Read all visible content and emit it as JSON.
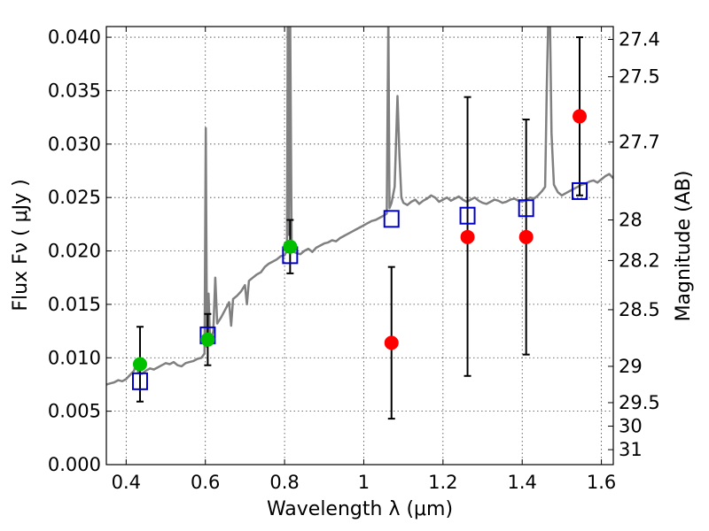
{
  "chart_data": {
    "type": "scatter",
    "xlabel": "Wavelength  λ (μm)",
    "ylabel": "Flux  Fν  ( μJy )",
    "ylabel_right": "Magnitude (AB)",
    "xlim": [
      0.35,
      1.63
    ],
    "ylim": [
      0.0,
      0.041
    ],
    "x_ticks": [
      0.4,
      0.6,
      0.8,
      1.0,
      1.2,
      1.4,
      1.6
    ],
    "x_tick_labels": [
      "0.4",
      "0.6",
      "0.8",
      "1",
      "1.2",
      "1.4",
      "1.6"
    ],
    "y_ticks": [
      0.0,
      0.005,
      0.01,
      0.015,
      0.02,
      0.025,
      0.03,
      0.035,
      0.04
    ],
    "y_tick_labels": [
      "0.000",
      "0.005",
      "0.010",
      "0.015",
      "0.020",
      "0.025",
      "0.030",
      "0.035",
      "0.040"
    ],
    "right_ticks": [
      {
        "label": "27.4",
        "flux": 0.0398
      },
      {
        "label": "27.5",
        "flux": 0.0363
      },
      {
        "label": "27.7",
        "flux": 0.0302
      },
      {
        "label": "28",
        "flux": 0.0229
      },
      {
        "label": "28.2",
        "flux": 0.0191
      },
      {
        "label": "28.5",
        "flux": 0.0145
      },
      {
        "label": "29",
        "flux": 0.0092
      },
      {
        "label": "29.5",
        "flux": 0.0058
      },
      {
        "label": "30",
        "flux": 0.0036
      },
      {
        "label": "31",
        "flux": 0.0014
      }
    ],
    "grid": true,
    "series": [
      {
        "marker": "open-square",
        "color": "#0000cc",
        "points": [
          {
            "x": 0.435,
            "y": 0.0078
          },
          {
            "x": 0.606,
            "y": 0.0121
          },
          {
            "x": 0.814,
            "y": 0.0196
          },
          {
            "x": 1.07,
            "y": 0.023
          },
          {
            "x": 1.262,
            "y": 0.0233
          },
          {
            "x": 1.41,
            "y": 0.024
          },
          {
            "x": 1.545,
            "y": 0.0256
          }
        ]
      },
      {
        "marker": "filled-circle",
        "color": "#00c000",
        "points": [
          {
            "x": 0.435,
            "y": 0.0094,
            "err_low": 0.0035,
            "err_high": 0.0035
          },
          {
            "x": 0.606,
            "y": 0.0117,
            "err_low": 0.0024,
            "err_high": 0.0024
          },
          {
            "x": 0.814,
            "y": 0.0204,
            "err_low": 0.0025,
            "err_high": 0.0025
          }
        ]
      },
      {
        "marker": "filled-circle",
        "color": "#ff0000",
        "points": [
          {
            "x": 1.07,
            "y": 0.0114,
            "err_low": 0.0071,
            "err_high": 0.0071
          },
          {
            "x": 1.262,
            "y": 0.0213,
            "err_low": 0.013,
            "err_high": 0.0131
          },
          {
            "x": 1.41,
            "y": 0.0213,
            "err_low": 0.011,
            "err_high": 0.011
          },
          {
            "x": 1.545,
            "y": 0.0326,
            "err_low": 0.0074,
            "err_high": 0.0074
          }
        ]
      }
    ],
    "spectrum": {
      "color": "#808080",
      "points": [
        [
          0.35,
          0.0075
        ],
        [
          0.36,
          0.0076
        ],
        [
          0.37,
          0.0077
        ],
        [
          0.38,
          0.0079
        ],
        [
          0.39,
          0.0078
        ],
        [
          0.4,
          0.008
        ],
        [
          0.41,
          0.0084
        ],
        [
          0.42,
          0.0088
        ],
        [
          0.425,
          0.0095
        ],
        [
          0.43,
          0.0087
        ],
        [
          0.44,
          0.0085
        ],
        [
          0.45,
          0.0088
        ],
        [
          0.46,
          0.009
        ],
        [
          0.47,
          0.0089
        ],
        [
          0.48,
          0.0091
        ],
        [
          0.49,
          0.0093
        ],
        [
          0.5,
          0.0095
        ],
        [
          0.51,
          0.0094
        ],
        [
          0.52,
          0.0096
        ],
        [
          0.53,
          0.0093
        ],
        [
          0.54,
          0.0092
        ],
        [
          0.55,
          0.0095
        ],
        [
          0.56,
          0.0096
        ],
        [
          0.57,
          0.0097
        ],
        [
          0.58,
          0.0099
        ],
        [
          0.59,
          0.01
        ],
        [
          0.598,
          0.0104
        ],
        [
          0.601,
          0.0315
        ],
        [
          0.604,
          0.011
        ],
        [
          0.608,
          0.016
        ],
        [
          0.612,
          0.0115
        ],
        [
          0.62,
          0.0125
        ],
        [
          0.625,
          0.0175
        ],
        [
          0.63,
          0.0132
        ],
        [
          0.64,
          0.0138
        ],
        [
          0.65,
          0.0145
        ],
        [
          0.66,
          0.0152
        ],
        [
          0.665,
          0.013
        ],
        [
          0.67,
          0.0155
        ],
        [
          0.68,
          0.0158
        ],
        [
          0.69,
          0.0162
        ],
        [
          0.7,
          0.0168
        ],
        [
          0.705,
          0.015
        ],
        [
          0.71,
          0.0172
        ],
        [
          0.72,
          0.0175
        ],
        [
          0.73,
          0.0178
        ],
        [
          0.74,
          0.018
        ],
        [
          0.75,
          0.0185
        ],
        [
          0.76,
          0.0188
        ],
        [
          0.77,
          0.019
        ],
        [
          0.78,
          0.0192
        ],
        [
          0.79,
          0.0195
        ],
        [
          0.8,
          0.0196
        ],
        [
          0.806,
          0.02
        ],
        [
          0.808,
          0.042
        ],
        [
          0.811,
          0.0215
        ],
        [
          0.814,
          0.042
        ],
        [
          0.818,
          0.02
        ],
        [
          0.83,
          0.0198
        ],
        [
          0.84,
          0.0197
        ],
        [
          0.85,
          0.02
        ],
        [
          0.86,
          0.0202
        ],
        [
          0.87,
          0.0199
        ],
        [
          0.88,
          0.0203
        ],
        [
          0.89,
          0.0205
        ],
        [
          0.9,
          0.0207
        ],
        [
          0.91,
          0.0208
        ],
        [
          0.92,
          0.021
        ],
        [
          0.93,
          0.0209
        ],
        [
          0.94,
          0.0212
        ],
        [
          0.95,
          0.0214
        ],
        [
          0.96,
          0.0216
        ],
        [
          0.97,
          0.0218
        ],
        [
          0.98,
          0.022
        ],
        [
          0.99,
          0.0222
        ],
        [
          1.0,
          0.0224
        ],
        [
          1.01,
          0.0226
        ],
        [
          1.02,
          0.0228
        ],
        [
          1.03,
          0.0229
        ],
        [
          1.04,
          0.0231
        ],
        [
          1.05,
          0.0233
        ],
        [
          1.058,
          0.0235
        ],
        [
          1.062,
          0.042
        ],
        [
          1.065,
          0.024
        ],
        [
          1.07,
          0.0245
        ],
        [
          1.078,
          0.026
        ],
        [
          1.085,
          0.0345
        ],
        [
          1.09,
          0.029
        ],
        [
          1.095,
          0.025
        ],
        [
          1.1,
          0.0245
        ],
        [
          1.11,
          0.0243
        ],
        [
          1.12,
          0.0246
        ],
        [
          1.13,
          0.0248
        ],
        [
          1.14,
          0.0244
        ],
        [
          1.15,
          0.0247
        ],
        [
          1.16,
          0.0249
        ],
        [
          1.17,
          0.0252
        ],
        [
          1.18,
          0.025
        ],
        [
          1.19,
          0.0246
        ],
        [
          1.2,
          0.0248
        ],
        [
          1.21,
          0.025
        ],
        [
          1.22,
          0.0247
        ],
        [
          1.23,
          0.0249
        ],
        [
          1.24,
          0.0251
        ],
        [
          1.25,
          0.0248
        ],
        [
          1.26,
          0.0246
        ],
        [
          1.27,
          0.0248
        ],
        [
          1.28,
          0.025
        ],
        [
          1.29,
          0.0247
        ],
        [
          1.3,
          0.0245
        ],
        [
          1.31,
          0.0244
        ],
        [
          1.32,
          0.0246
        ],
        [
          1.33,
          0.0248
        ],
        [
          1.34,
          0.0247
        ],
        [
          1.35,
          0.0245
        ],
        [
          1.36,
          0.0246
        ],
        [
          1.37,
          0.0248
        ],
        [
          1.38,
          0.0249
        ],
        [
          1.39,
          0.0247
        ],
        [
          1.4,
          0.0246
        ],
        [
          1.41,
          0.0248
        ],
        [
          1.42,
          0.025
        ],
        [
          1.43,
          0.0249
        ],
        [
          1.44,
          0.0252
        ],
        [
          1.45,
          0.0256
        ],
        [
          1.458,
          0.026
        ],
        [
          1.462,
          0.035
        ],
        [
          1.466,
          0.042
        ],
        [
          1.47,
          0.042
        ],
        [
          1.474,
          0.031
        ],
        [
          1.48,
          0.0262
        ],
        [
          1.49,
          0.0255
        ],
        [
          1.5,
          0.0252
        ],
        [
          1.51,
          0.0254
        ],
        [
          1.52,
          0.0256
        ],
        [
          1.53,
          0.0258
        ],
        [
          1.54,
          0.026
        ],
        [
          1.55,
          0.0262
        ],
        [
          1.56,
          0.0263
        ],
        [
          1.57,
          0.0265
        ],
        [
          1.58,
          0.0266
        ],
        [
          1.59,
          0.0264
        ],
        [
          1.6,
          0.0267
        ],
        [
          1.61,
          0.027
        ],
        [
          1.62,
          0.0272
        ],
        [
          1.63,
          0.0268
        ]
      ]
    }
  }
}
